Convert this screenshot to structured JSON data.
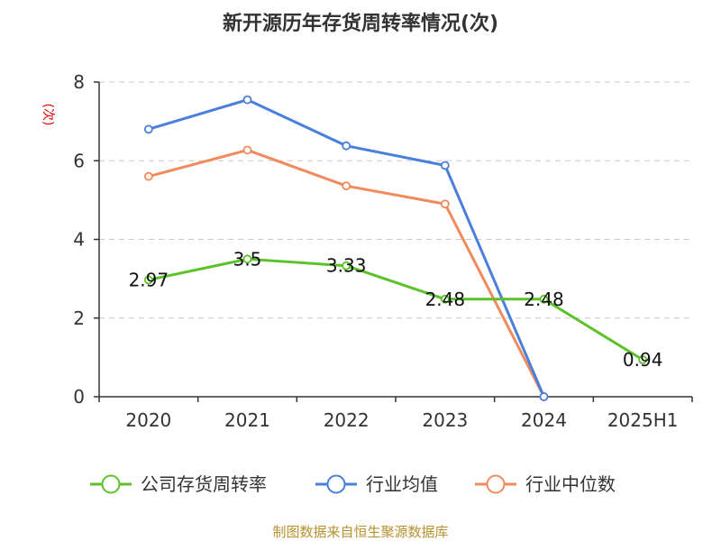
{
  "chart_data": {
    "type": "line",
    "title": "新开源历年存货周转率情况(次)",
    "ylabel": "(次)",
    "xlabel": "",
    "categories": [
      "2020",
      "2021",
      "2022",
      "2023",
      "2024",
      "2025H1"
    ],
    "ylim": [
      0,
      8
    ],
    "yticks": [
      0,
      2,
      4,
      6,
      8
    ],
    "grid": true,
    "legend_position": "bottom",
    "series": [
      {
        "name": "公司存货周转率",
        "color": "#5cc22a",
        "values": [
          2.97,
          3.5,
          3.33,
          2.48,
          2.48,
          0.94
        ],
        "data_labels": [
          "2.97",
          "3.5",
          "3.33",
          "2.48",
          "2.48",
          "0.94"
        ]
      },
      {
        "name": "行业均值",
        "color": "#4a7fdc",
        "values": [
          6.8,
          7.55,
          6.38,
          5.88,
          0,
          null
        ]
      },
      {
        "name": "行业中位数",
        "color": "#f28a5b",
        "values": [
          5.6,
          6.27,
          5.36,
          4.9,
          0,
          null
        ]
      }
    ]
  },
  "source": "制图数据来自恒生聚源数据库"
}
